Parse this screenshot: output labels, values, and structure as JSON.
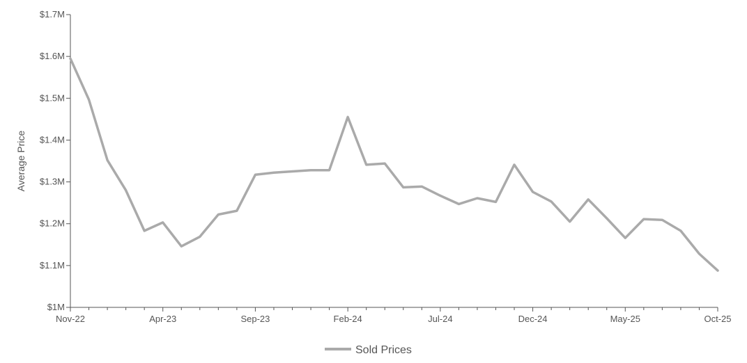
{
  "chart_data": {
    "type": "line",
    "title": "",
    "xlabel": "",
    "ylabel": "Average Price",
    "ylim": [
      1000000,
      1700000
    ],
    "y_ticks": [
      {
        "value": 1000000,
        "label": "$1M"
      },
      {
        "value": 1100000,
        "label": "$1.1M"
      },
      {
        "value": 1200000,
        "label": "$1.2M"
      },
      {
        "value": 1300000,
        "label": "$1.3M"
      },
      {
        "value": 1400000,
        "label": "$1.4M"
      },
      {
        "value": 1500000,
        "label": "$1.5M"
      },
      {
        "value": 1600000,
        "label": "$1.6M"
      },
      {
        "value": 1700000,
        "label": "$1.7M"
      }
    ],
    "x_tick_labels": [
      "Nov-22",
      "Apr-23",
      "Sep-23",
      "Feb-24",
      "Jul-24",
      "Dec-24",
      "May-25",
      "Oct-25"
    ],
    "x_tick_label_indices": [
      0,
      5,
      10,
      15,
      20,
      25,
      30,
      35
    ],
    "x": [
      "Nov-22",
      "Dec-22",
      "Jan-23",
      "Feb-23",
      "Mar-23",
      "Apr-23",
      "May-23",
      "Jun-23",
      "Jul-23",
      "Aug-23",
      "Sep-23",
      "Oct-23",
      "Nov-23",
      "Dec-23",
      "Jan-24",
      "Feb-24",
      "Mar-24",
      "Apr-24",
      "May-24",
      "Jun-24",
      "Jul-24",
      "Aug-24",
      "Sep-24",
      "Oct-24",
      "Nov-24",
      "Dec-24",
      "Jan-25",
      "Feb-25",
      "Mar-25",
      "Apr-25",
      "May-25",
      "Jun-25",
      "Jul-25",
      "Aug-25",
      "Sep-25",
      "Oct-25"
    ],
    "series": [
      {
        "name": "Sold Prices",
        "color": "#aaaaaa",
        "values": [
          1595000,
          1497000,
          1352000,
          1280000,
          1183000,
          1203000,
          1146000,
          1169000,
          1222000,
          1231000,
          1317000,
          1322000,
          1325000,
          1328000,
          1328000,
          1455000,
          1341000,
          1344000,
          1287000,
          1289000,
          1267000,
          1247000,
          1261000,
          1252000,
          1341000,
          1276000,
          1253000,
          1205000,
          1258000,
          1213000,
          1166000,
          1211000,
          1209000,
          1183000,
          1128000,
          1088000
        ]
      }
    ],
    "grid": false,
    "legend": "bottom-center",
    "axis_color": "#555555"
  }
}
